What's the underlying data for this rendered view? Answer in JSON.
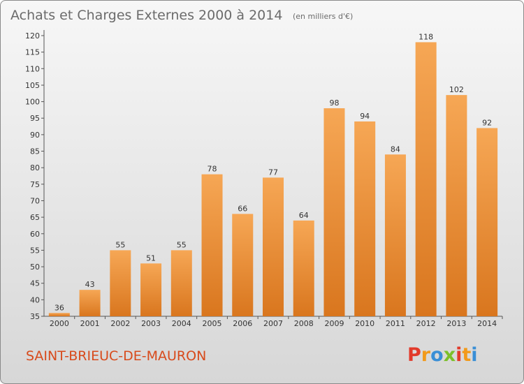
{
  "chart_data": {
    "type": "bar",
    "title": "Achats et Charges Externes 2000 à 2014",
    "unit_note": "(en milliers d'€)",
    "categories": [
      "2000",
      "2001",
      "2002",
      "2003",
      "2004",
      "2005",
      "2006",
      "2007",
      "2008",
      "2009",
      "2010",
      "2011",
      "2012",
      "2013",
      "2014"
    ],
    "values": [
      36,
      43,
      55,
      51,
      55,
      78,
      66,
      77,
      64,
      98,
      94,
      84,
      118,
      102,
      92
    ],
    "ylim": [
      35,
      120
    ],
    "yticks": [
      35,
      40,
      45,
      50,
      55,
      60,
      65,
      70,
      75,
      80,
      85,
      90,
      95,
      100,
      105,
      110,
      115,
      120
    ],
    "xlabel": "",
    "ylabel": "",
    "grid": false,
    "legend": "none",
    "bar_color_top": "#f6a755",
    "bar_color_bottom": "#d9761e"
  },
  "footer": {
    "commune": "SAINT-BRIEUC-DE-MAURON",
    "logo_letters": [
      "P",
      "r",
      "o",
      "x",
      "i",
      "t",
      "i"
    ],
    "logo_colors": [
      "#e23a2b",
      "#f29a1b",
      "#3a8fd6",
      "#7bbf2a",
      "#e23a2b",
      "#f29a1b",
      "#3a8fd6"
    ]
  }
}
